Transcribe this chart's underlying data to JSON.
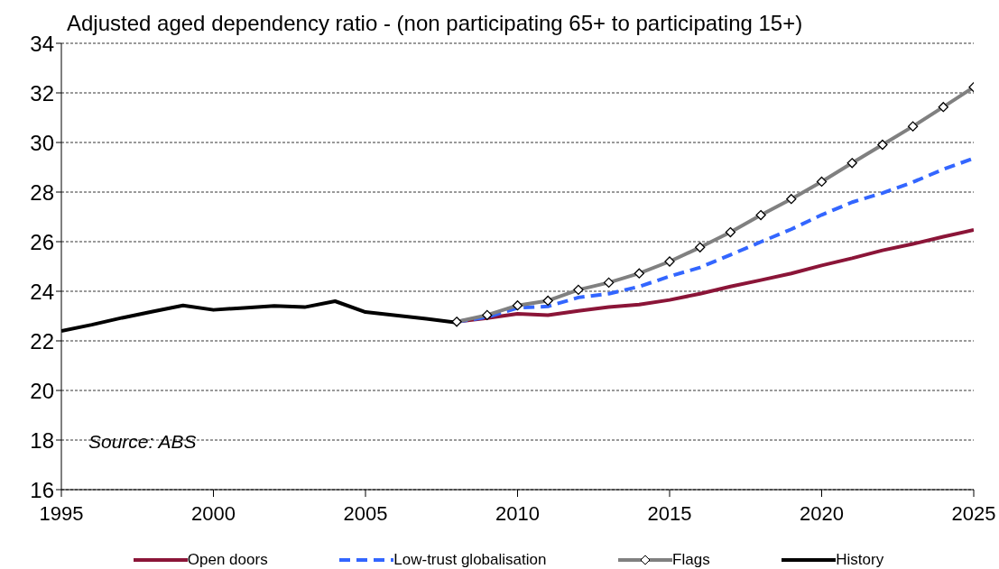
{
  "chart_data": {
    "type": "line",
    "title": "Adjusted aged dependency ratio - (non participating 65+ to participating 15+)",
    "annotations": [
      "Source: ABS"
    ],
    "xlim": [
      1995,
      2025
    ],
    "xticks": [
      1995,
      2000,
      2005,
      2010,
      2015,
      2020,
      2025
    ],
    "ylim": [
      16,
      34
    ],
    "yticks": [
      16,
      18,
      20,
      22,
      24,
      26,
      28,
      30,
      32,
      34
    ],
    "grid": "y",
    "legend": "bottom",
    "line_style": "solid",
    "series": [
      {
        "name": "Open doors",
        "color": "#8b1538",
        "x": [
          2008,
          2009,
          2010,
          2011,
          2012,
          2013,
          2014,
          2015,
          2016,
          2017,
          2018,
          2019,
          2020,
          2021,
          2022,
          2023,
          2024,
          2025
        ],
        "values": [
          22.77,
          22.92,
          23.09,
          23.04,
          23.21,
          23.36,
          23.46,
          23.65,
          23.9,
          24.19,
          24.45,
          24.72,
          25.04,
          25.33,
          25.65,
          25.91,
          26.2,
          26.47
        ]
      },
      {
        "name": "Low-trust globalisation",
        "color": "#3366ff",
        "line_style": "dashed",
        "x": [
          2008,
          2009,
          2010,
          2011,
          2012,
          2013,
          2014,
          2015,
          2016,
          2017,
          2018,
          2019,
          2020,
          2021,
          2022,
          2023,
          2024,
          2025
        ],
        "values": [
          22.77,
          22.96,
          23.33,
          23.39,
          23.75,
          23.9,
          24.19,
          24.6,
          24.96,
          25.47,
          25.99,
          26.5,
          27.08,
          27.59,
          27.96,
          28.4,
          28.92,
          29.36
        ]
      },
      {
        "name": "Flags",
        "color": "#808080",
        "marker": "diamond",
        "x": [
          2008,
          2009,
          2010,
          2011,
          2012,
          2013,
          2014,
          2015,
          2016,
          2017,
          2018,
          2019,
          2020,
          2021,
          2022,
          2023,
          2024,
          2025
        ],
        "values": [
          22.77,
          23.04,
          23.43,
          23.62,
          24.06,
          24.35,
          24.72,
          25.2,
          25.77,
          26.38,
          27.07,
          27.72,
          28.42,
          29.17,
          29.91,
          30.65,
          31.43,
          32.23
        ]
      },
      {
        "name": "History",
        "color": "#000000",
        "x": [
          1995,
          1996,
          1997,
          1998,
          1999,
          2000,
          2001,
          2002,
          2003,
          2004,
          2005,
          2006,
          2007,
          2008
        ],
        "values": [
          22.4,
          22.65,
          22.93,
          23.18,
          23.43,
          23.25,
          23.33,
          23.41,
          23.36,
          23.6,
          23.16,
          23.03,
          22.89,
          22.74
        ]
      }
    ]
  }
}
